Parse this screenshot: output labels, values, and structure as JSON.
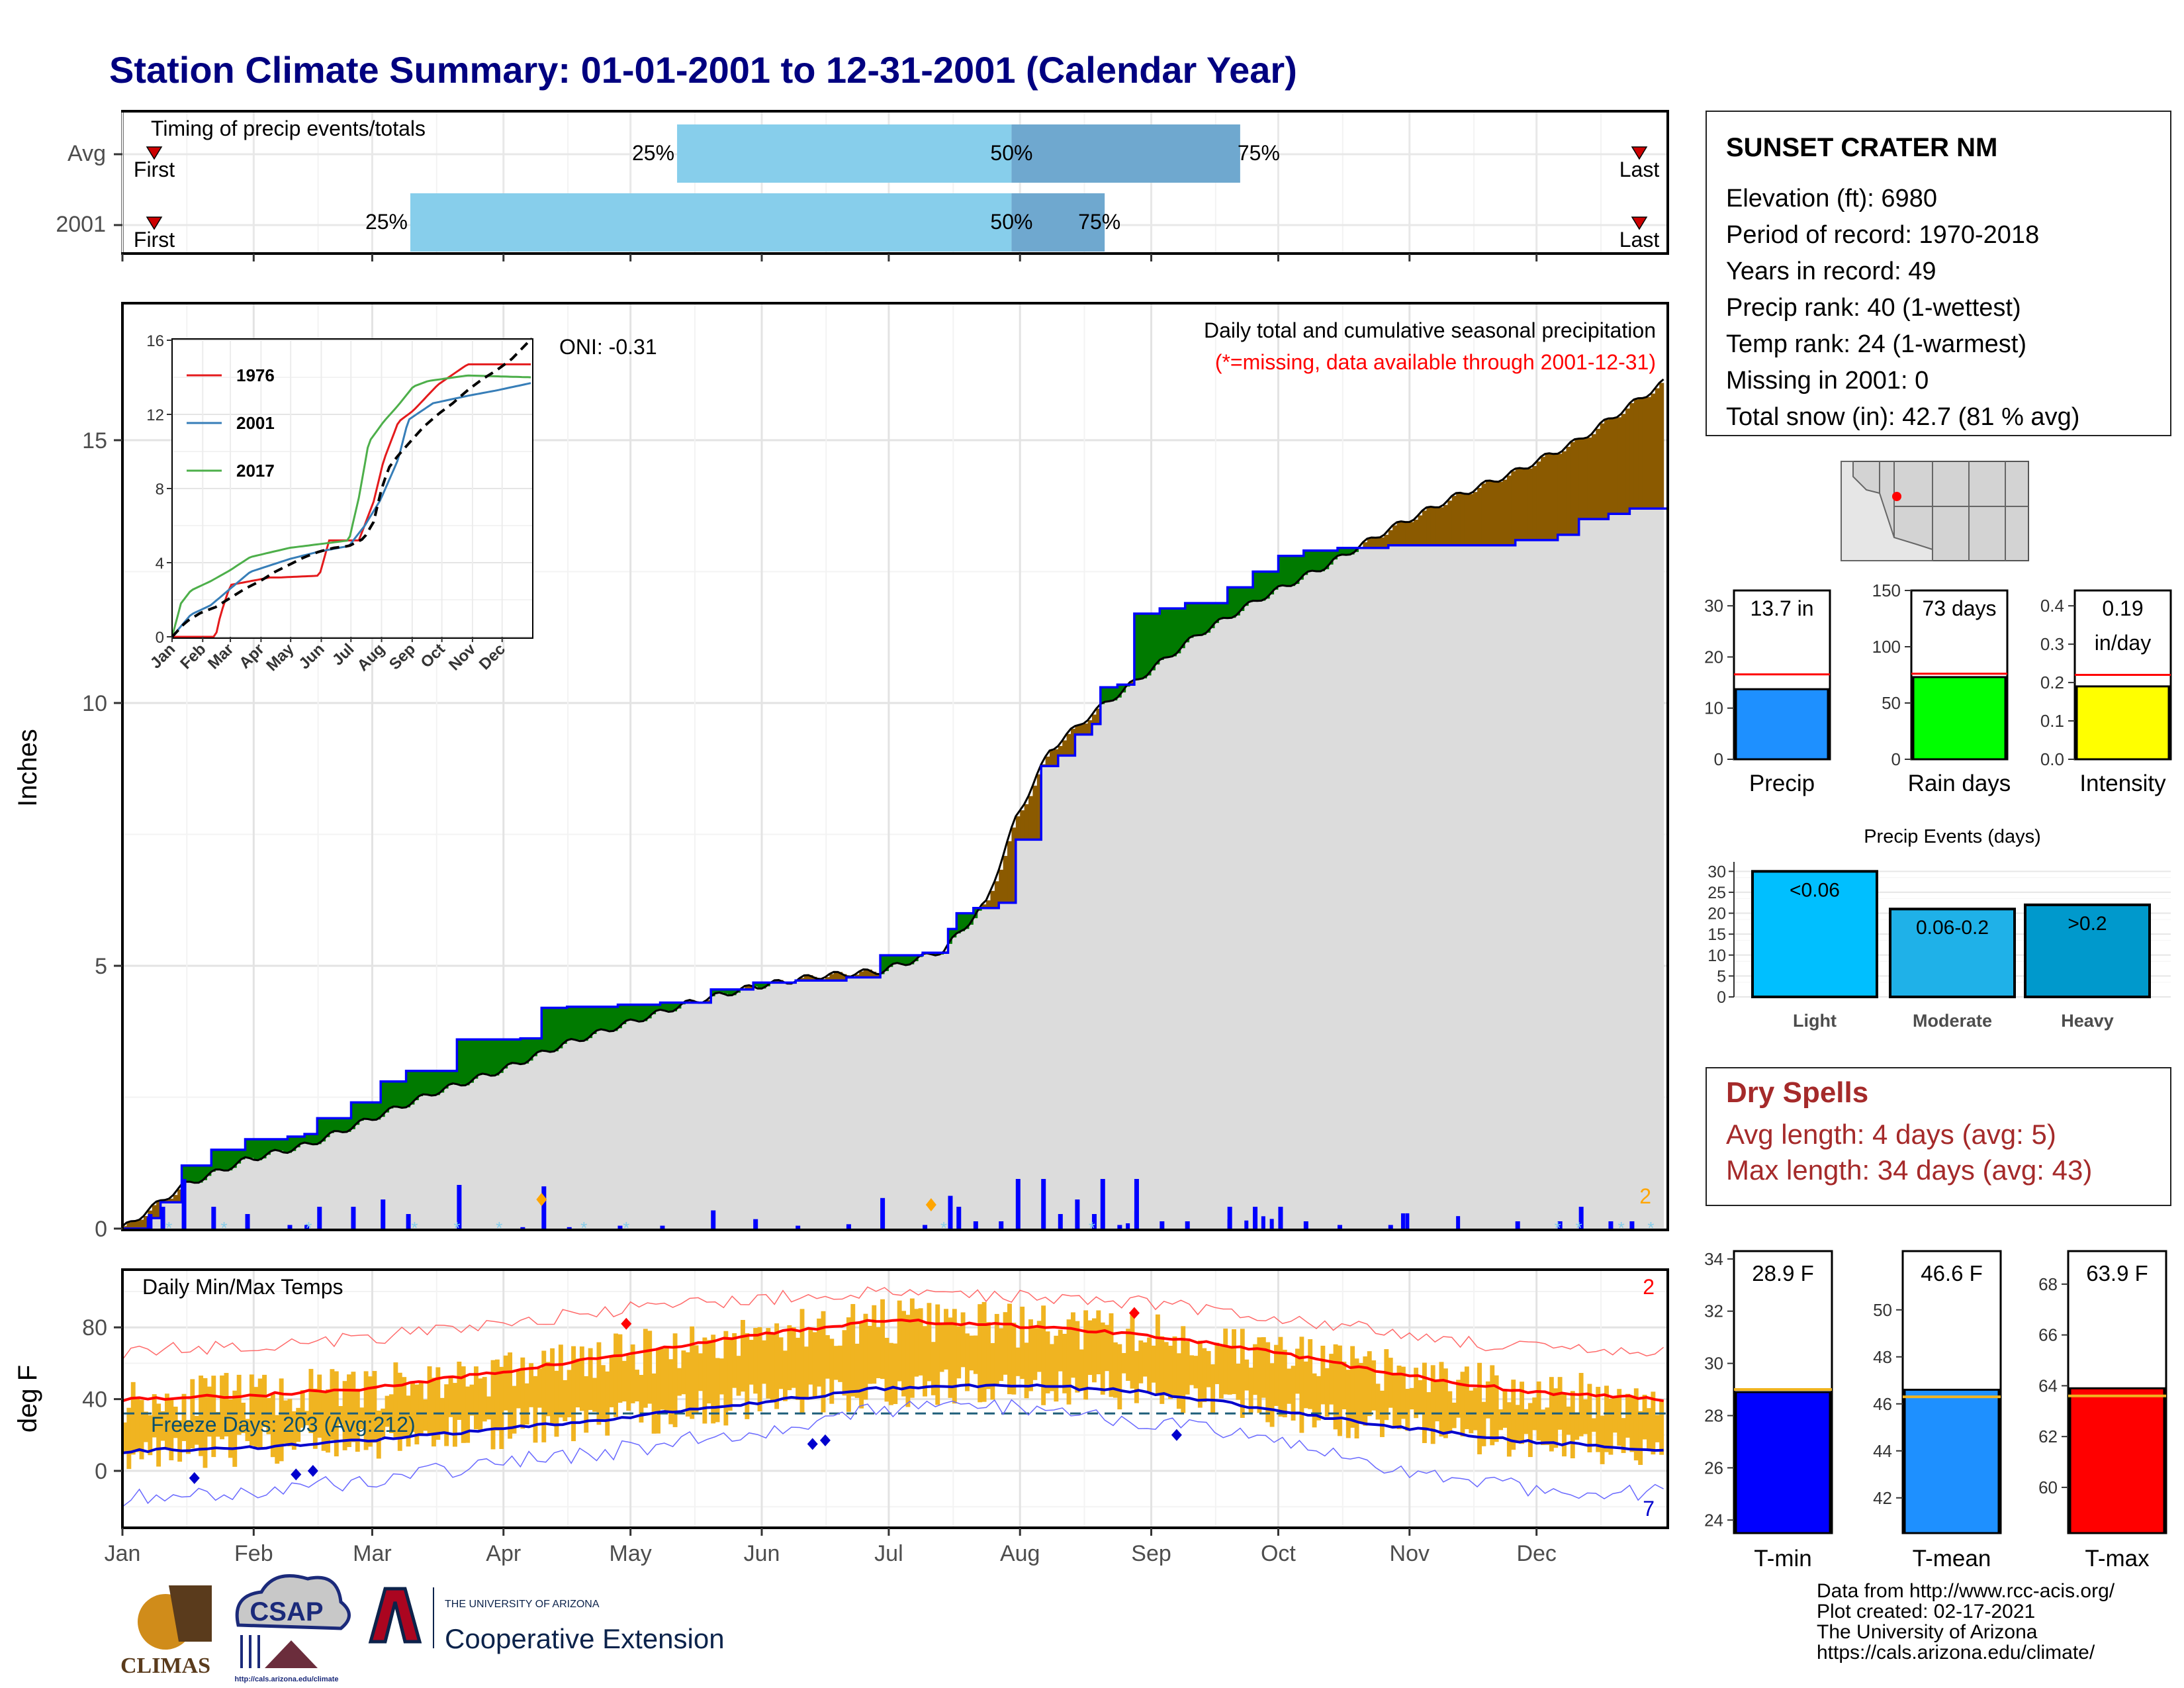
{
  "title": "Station Climate Summary: 01-01-2001 to 12-31-2001 (Calendar Year)",
  "timing": {
    "label": "Timing of precip events/totals",
    "rows": [
      {
        "name": "Avg",
        "first": "First",
        "last": "Last",
        "p25": "25%",
        "p50": "50%",
        "p75": "75%",
        "q25_doy": 132,
        "q50_doy": 211,
        "q75_doy": 265
      },
      {
        "name": "2001",
        "first": "First",
        "last": "Last",
        "p25": "25%",
        "p50": "50%",
        "p75": "75%",
        "q25_doy": 69,
        "q50_doy": 211,
        "q75_doy": 233
      }
    ]
  },
  "precip_panel": {
    "ylabel": "Inches",
    "title": "Daily total and cumulative seasonal precipitation",
    "subtitle": "(*=missing, data available through 2001-12-31)",
    "oni": "ONI: -0.31",
    "corner_count": "2",
    "yticks": [
      "0",
      "5",
      "10",
      "15"
    ]
  },
  "inset": {
    "yticks": [
      "0",
      "4",
      "8",
      "12",
      "16"
    ],
    "months": [
      "Jan",
      "Feb",
      "Mar",
      "Apr",
      "May",
      "Jun",
      "Jul",
      "Aug",
      "Sep",
      "Oct",
      "Nov",
      "Dec"
    ],
    "legend": [
      "1976",
      "2001",
      "2017"
    ],
    "colors": [
      "#e41a1c",
      "#377eb8",
      "#4daf4a"
    ]
  },
  "temp_panel": {
    "ylabel": "deg F",
    "title": "Daily Min/Max Temps",
    "freeze": "Freeze Days: 203 (Avg:212)",
    "count_top": "2",
    "count_bottom": "7",
    "yticks": [
      "0",
      "40",
      "80"
    ]
  },
  "x_months": [
    "Jan",
    "Feb",
    "Mar",
    "Apr",
    "May",
    "Jun",
    "Jul",
    "Aug",
    "Sep",
    "Oct",
    "Nov",
    "Dec"
  ],
  "station": {
    "name": "SUNSET CRATER NM",
    "lines": [
      "Elevation (ft): 6980",
      "Period of record: 1970-2018",
      "Years in record: 49",
      "Precip rank: 40 (1-wettest)",
      "Temp rank: 24 (1-warmest)",
      "Missing in 2001: 0",
      "Total snow (in): 42.7 (81 % avg)"
    ]
  },
  "mini_bars": [
    {
      "label": "Precip",
      "value_text": "13.7 in",
      "value": 13.7,
      "avg": 16.6,
      "ymax": 33,
      "yticks": [
        0,
        10,
        20,
        30
      ],
      "color": "#1e90ff"
    },
    {
      "label": "Rain days",
      "value_text": "73 days",
      "value": 73,
      "avg": 76,
      "ymax": 150,
      "yticks": [
        0,
        50,
        100,
        150
      ],
      "color": "#00ff00"
    },
    {
      "label": "Intensity",
      "value_text": "0.19",
      "value_text2": "in/day",
      "value": 0.19,
      "avg": 0.22,
      "ymax": 0.44,
      "yticks": [
        0.0,
        0.1,
        0.2,
        0.3,
        0.4
      ],
      "ytick_labels": [
        "0.0",
        "0.1",
        "0.2",
        "0.3",
        "0.4"
      ],
      "color": "#ffff00"
    }
  ],
  "events": {
    "title": "Precip Events (days)",
    "yticks": [
      0,
      5,
      10,
      15,
      20,
      25,
      30
    ],
    "bars": [
      {
        "name": "Light",
        "range": "<0.06",
        "value": 30,
        "color": "#00bfff"
      },
      {
        "name": "Moderate",
        "range": "0.06-0.2",
        "value": 21,
        "color": "#1fb1e8"
      },
      {
        "name": "Heavy",
        "range": ">0.2",
        "value": 22,
        "color": "#0099cc"
      }
    ]
  },
  "dry_spells": {
    "title": "Dry Spells",
    "avg": "Avg length: 4 days (avg: 5)",
    "max": "Max length: 34 days (avg: 43)"
  },
  "temp_bars": [
    {
      "label": "T-min",
      "value_text": "28.9 F",
      "value": 28.9,
      "avg": 29.0,
      "ymin": 23.5,
      "ymax": 34.3,
      "yticks": [
        24,
        26,
        28,
        30,
        32,
        34
      ],
      "color": "#0000ff"
    },
    {
      "label": "T-mean",
      "value_text": "46.6 F",
      "value": 46.6,
      "avg": 46.3,
      "ymin": 40.5,
      "ymax": 52.5,
      "yticks": [
        42,
        44,
        46,
        48,
        50
      ],
      "color": "#1e90ff"
    },
    {
      "label": "T-max",
      "value_text": "63.9 F",
      "value": 63.9,
      "avg": 63.6,
      "ymin": 58.2,
      "ymax": 69.3,
      "yticks": [
        60,
        62,
        64,
        66,
        68
      ],
      "color": "#ff0000"
    }
  ],
  "footer": [
    "Data from http://www.rcc-acis.org/",
    "Plot created: 02-17-2021",
    "The University of Arizona",
    "https://cals.arizona.edu/climate/"
  ],
  "logos": {
    "climas": "CLIMAS",
    "csap": "CSAP",
    "csap_url": "http://cals.arizona.edu/climate",
    "ua_small": "THE UNIVERSITY OF ARIZONA",
    "ua_big": "Cooperative Extension"
  },
  "chart_data": [
    {
      "type": "area",
      "title": "Daily total and cumulative seasonal precipitation",
      "ylabel": "Inches",
      "ylim": [
        0,
        16
      ],
      "series": [
        {
          "name": "avg cumulative",
          "x_doy": [
            1,
            15,
            30,
            45,
            60,
            75,
            90,
            105,
            120,
            135,
            150,
            165,
            180,
            195,
            205,
            212,
            220,
            230,
            240,
            255,
            270,
            285,
            300,
            315,
            330,
            345,
            365
          ],
          "values": [
            0,
            0.8,
            1.3,
            1.6,
            2.1,
            2.6,
            3.0,
            3.5,
            3.9,
            4.3,
            4.6,
            4.8,
            4.9,
            5.3,
            6.2,
            7.8,
            9.1,
            9.8,
            10.4,
            11.3,
            12.0,
            12.6,
            13.3,
            13.9,
            14.4,
            15.0,
            16.1
          ]
        },
        {
          "name": "2001 cumulative",
          "x_doy": [
            1,
            7,
            10,
            15,
            22,
            30,
            40,
            44,
            47,
            55,
            62,
            68,
            80,
            95,
            100,
            106,
            118,
            128,
            140,
            150,
            160,
            172,
            180,
            190,
            196,
            198,
            202,
            208,
            212,
            218,
            222,
            226,
            230,
            232,
            236,
            240,
            246,
            252,
            258,
            262,
            268,
            274,
            280,
            288,
            300,
            320,
            330,
            340,
            345,
            352,
            357,
            365
          ],
          "values": [
            0,
            0.2,
            0.5,
            1.2,
            1.5,
            1.7,
            1.75,
            1.8,
            2.1,
            2.4,
            2.8,
            3.0,
            3.6,
            3.62,
            4.2,
            4.22,
            4.26,
            4.3,
            4.55,
            4.68,
            4.72,
            4.78,
            5.2,
            5.25,
            5.7,
            6.0,
            6.1,
            6.2,
            7.4,
            8.8,
            9.0,
            9.4,
            9.6,
            10.3,
            10.35,
            11.7,
            11.8,
            11.9,
            11.9,
            12.2,
            12.5,
            12.8,
            12.9,
            12.95,
            13.0,
            13.0,
            13.1,
            13.2,
            13.5,
            13.6,
            13.7,
            13.7
          ]
        }
      ]
    },
    {
      "type": "line",
      "title": "Daily Min/Max Temps",
      "ylabel": "deg F",
      "ylim": [
        -28,
        105
      ],
      "freeze_line": 32,
      "x_doy": [
        1,
        31,
        59,
        90,
        120,
        151,
        181,
        212,
        243,
        273,
        304,
        334,
        365
      ],
      "series": [
        {
          "name": "avg max",
          "values": [
            40,
            42,
            46,
            55,
            65,
            76,
            84,
            81,
            76,
            66,
            53,
            44,
            40
          ]
        },
        {
          "name": "avg min",
          "values": [
            11,
            13,
            17,
            23,
            30,
            38,
            46,
            48,
            44,
            34,
            24,
            16,
            12
          ]
        },
        {
          "name": "record max",
          "values": [
            66,
            70,
            74,
            82,
            90,
            96,
            99,
            98,
            94,
            86,
            76,
            68,
            65
          ]
        },
        {
          "name": "record min",
          "values": [
            -15,
            -12,
            -5,
            4,
            12,
            22,
            34,
            36,
            28,
            16,
            0,
            -10,
            -12
          ]
        }
      ]
    }
  ]
}
